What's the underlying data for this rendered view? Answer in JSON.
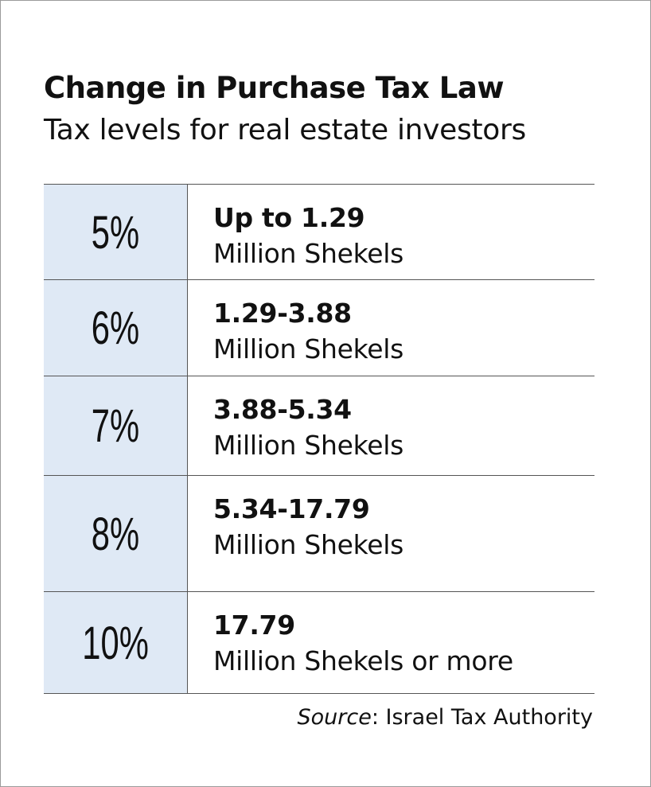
{
  "header": {
    "title": "Change in Purchase Tax Law",
    "subtitle": "Tax levels for real estate investors"
  },
  "table": {
    "rows": [
      [
        "5%",
        "Up to 1.29",
        "Million Shekels"
      ],
      [
        "6%",
        "1.29-3.88",
        "Million Shekels"
      ],
      [
        "7%",
        "3.88-5.34",
        "Million Shekels"
      ],
      [
        "8%",
        "5.34-17.79",
        "Million Shekels"
      ],
      [
        "10%",
        "17.79",
        "Million Shekels or more"
      ]
    ]
  },
  "source": {
    "label": "Source",
    "text": ": Israel Tax Authority"
  }
}
